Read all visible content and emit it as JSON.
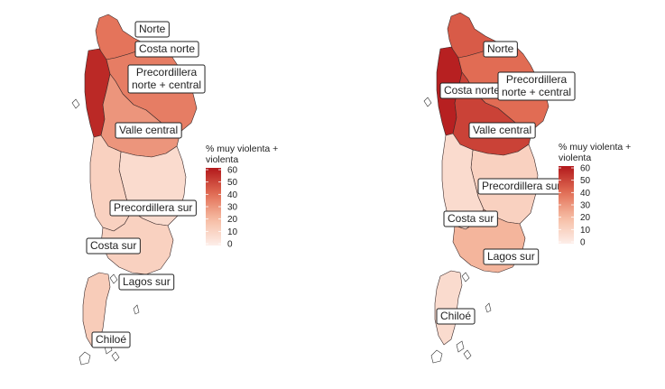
{
  "legend": {
    "title_line1": "% muy violenta +",
    "title_line2": "violenta",
    "ticks": [
      "60",
      "50",
      "40",
      "30",
      "20",
      "10",
      "0"
    ],
    "scale_max": 60,
    "scale_min": 0,
    "color_low": "#fdeee9",
    "color_high": "#b2181b"
  },
  "maps": [
    {
      "regions": [
        {
          "label": "Norte",
          "value": 38
        },
        {
          "label": "Costa norte",
          "value": 56
        },
        {
          "label": "Precordillera\nnorte + central",
          "value": 36
        },
        {
          "label": "Valle central",
          "value": 30
        },
        {
          "label": "Precordillera sur",
          "value": 8
        },
        {
          "label": "Costa sur",
          "value": 12
        },
        {
          "label": "Lagos sur",
          "value": 12
        },
        {
          "label": "Chiloé",
          "value": 14
        }
      ]
    },
    {
      "regions": [
        {
          "label": "Norte",
          "value": 44
        },
        {
          "label": "Costa norte",
          "value": 58
        },
        {
          "label": "Precordillera\nnorte + central",
          "value": 40
        },
        {
          "label": "Valle central",
          "value": 50
        },
        {
          "label": "Precordillera sur",
          "value": 12
        },
        {
          "label": "Costa sur",
          "value": 8
        },
        {
          "label": "Lagos sur",
          "value": 22
        },
        {
          "label": "Chiloé",
          "value": 8
        }
      ]
    }
  ]
}
